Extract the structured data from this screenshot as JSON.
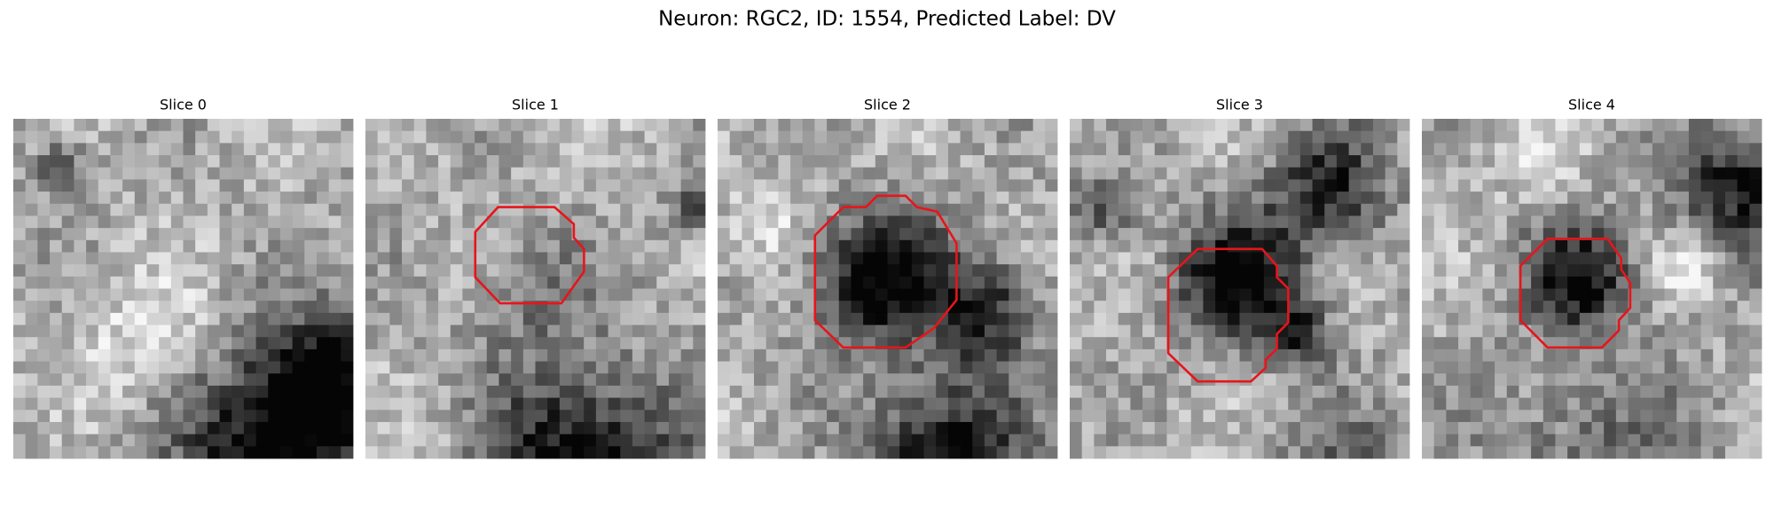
{
  "title": "Neuron: RGC2, ID: 1554, Predicted Label: DV",
  "panels": [
    {
      "title": "Slice 0"
    },
    {
      "title": "Slice 1"
    },
    {
      "title": "Slice 2"
    },
    {
      "title": "Slice 3"
    },
    {
      "title": "Slice 4"
    }
  ]
}
